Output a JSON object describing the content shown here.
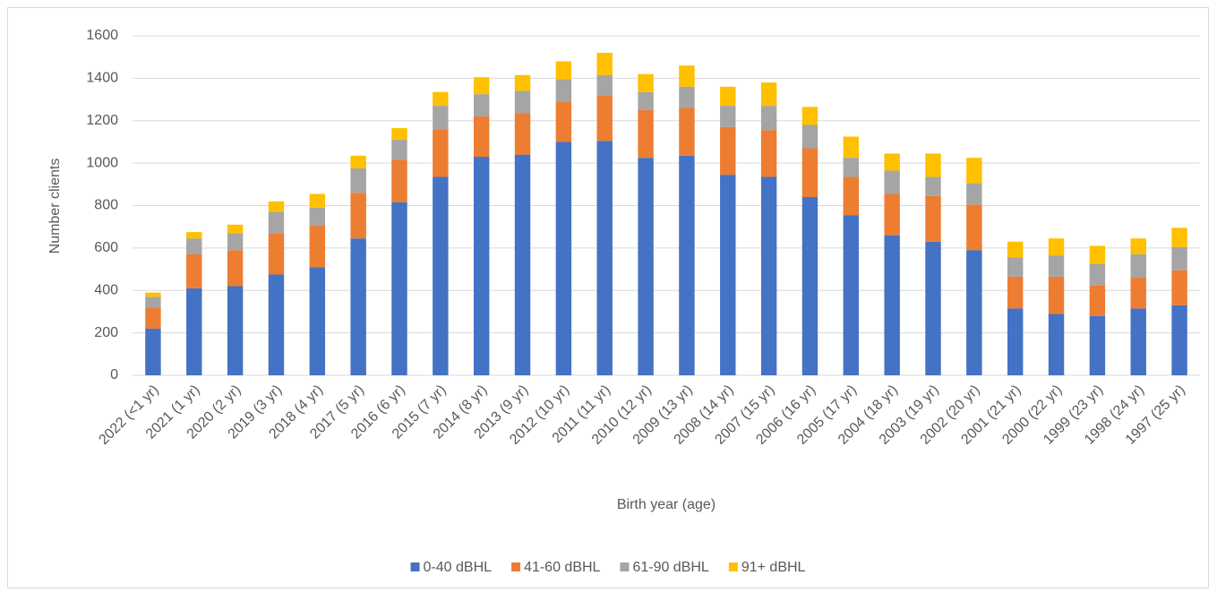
{
  "chart_data": {
    "type": "stacked_bar",
    "y_label": "Number clients",
    "x_label": "Birth year (age)",
    "categories": [
      "2022 (<1 yr)",
      "2021 (1 yr)",
      "2020 (2 yr)",
      "2019 (3 yr)",
      "2018 (4 yr)",
      "2017 (5 yr)",
      "2016 (6 yr)",
      "2015 (7 yr)",
      "2014 (8 yr)",
      "2013 (9 yr)",
      "2012 (10 yr)",
      "2011 (11 yr)",
      "2010 (12 yr)",
      "2009 (13 yr)",
      "2008 (14 yr)",
      "2007 (15 yr)",
      "2006 (16 yr)",
      "2005 (17 yr)",
      "2004 (18 yr)",
      "2003 (19 yr)",
      "2002 (20 yr)",
      "2001 (21 yr)",
      "2000 (22 yr)",
      "1999 (23 yr)",
      "1998 (24 yr)",
      "1997 (25 yr)"
    ],
    "series": [
      {
        "name": "0-40 dBHL",
        "color": "#4472c4",
        "values": [
          220,
          410,
          420,
          475,
          510,
          645,
          815,
          935,
          1030,
          1040,
          1100,
          1105,
          1025,
          1035,
          945,
          935,
          840,
          755,
          660,
          630,
          590,
          315,
          290,
          280,
          315,
          330
        ]
      },
      {
        "name": "41-60 dBHL",
        "color": "#ed7d31",
        "values": [
          100,
          160,
          170,
          195,
          195,
          215,
          200,
          225,
          190,
          195,
          190,
          215,
          225,
          225,
          225,
          220,
          230,
          180,
          195,
          215,
          215,
          150,
          175,
          145,
          145,
          165
        ]
      },
      {
        "name": "61-90 dBHL",
        "color": "#a5a5a5",
        "values": [
          50,
          75,
          80,
          100,
          85,
          115,
          95,
          110,
          105,
          105,
          105,
          95,
          85,
          100,
          100,
          115,
          110,
          90,
          110,
          90,
          100,
          90,
          100,
          100,
          110,
          110
        ]
      },
      {
        "name": "91+ dBHL",
        "color": "#ffc000",
        "values": [
          20,
          30,
          40,
          50,
          65,
          60,
          55,
          65,
          80,
          75,
          85,
          105,
          85,
          100,
          90,
          110,
          85,
          100,
          80,
          110,
          120,
          75,
          80,
          85,
          75,
          90
        ]
      }
    ],
    "ylim": [
      0,
      1600
    ],
    "yticks": [
      0,
      200,
      400,
      600,
      800,
      1000,
      1200,
      1400,
      1600
    ],
    "grid": true,
    "legend": "bottom"
  }
}
